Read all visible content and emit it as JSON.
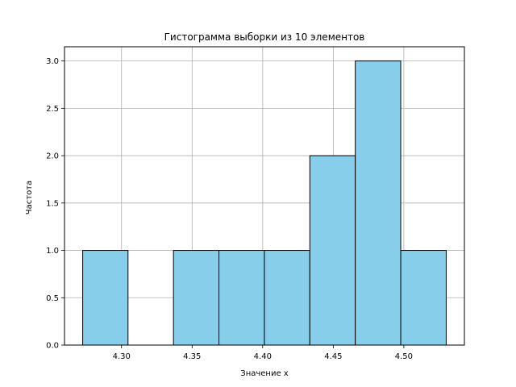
{
  "chart_data": {
    "type": "bar",
    "title": "Гистограмма выборки из 10 элементов",
    "xlabel": "Значение x",
    "ylabel": "Частота",
    "bins": [
      {
        "x0": 4.2725,
        "x1": 4.3046,
        "count": 1
      },
      {
        "x0": 4.3046,
        "x1": 4.3368,
        "count": 0
      },
      {
        "x0": 4.3368,
        "x1": 4.369,
        "count": 1
      },
      {
        "x0": 4.369,
        "x1": 4.4012,
        "count": 1
      },
      {
        "x0": 4.4012,
        "x1": 4.4334,
        "count": 1
      },
      {
        "x0": 4.4334,
        "x1": 4.4656,
        "count": 2
      },
      {
        "x0": 4.4656,
        "x1": 4.4978,
        "count": 3
      },
      {
        "x0": 4.4978,
        "x1": 4.53,
        "count": 1
      }
    ],
    "xlim": [
      4.2596,
      4.5429
    ],
    "ylim": [
      0,
      3.15
    ],
    "xticks": [
      4.3,
      4.35,
      4.4,
      4.45,
      4.5
    ],
    "xtick_labels": [
      "4.30",
      "4.35",
      "4.40",
      "4.45",
      "4.50"
    ],
    "yticks": [
      0.0,
      0.5,
      1.0,
      1.5,
      2.0,
      2.5,
      3.0
    ],
    "ytick_labels": [
      "0.0",
      "0.5",
      "1.0",
      "1.5",
      "2.0",
      "2.5",
      "3.0"
    ],
    "grid": true,
    "bar_color": "#87CEEB",
    "edge_color": "#000000"
  }
}
